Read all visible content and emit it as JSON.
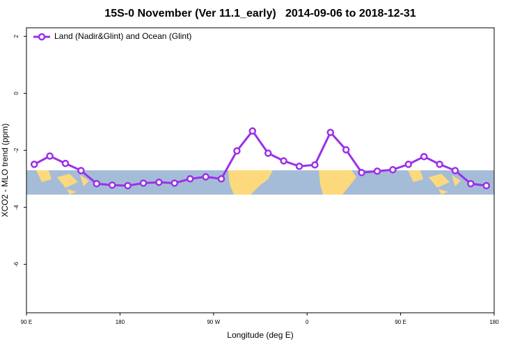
{
  "chart_data": {
    "type": "line",
    "title": "15S-0 November (Ver 11.1_early)   2014-09-06 to 2018-12-31",
    "xlabel": "Longitude (deg E)",
    "ylabel": "XCO2 - MLO trend (ppm)",
    "x": [
      97.5,
      112.5,
      127.5,
      142.5,
      157.5,
      172.5,
      187.5,
      202.5,
      217.5,
      232.5,
      247.5,
      262.5,
      277.5,
      292.5,
      307.5,
      322.5,
      337.5,
      352.5,
      367.5,
      382.5,
      397.5,
      412.5,
      427.5,
      442.5,
      457.5,
      472.5,
      487.5,
      502.5,
      517.5,
      532.5
    ],
    "series": [
      {
        "name": "Land (Nadir&Glint) and Ocean (Glint)",
        "color": "#9b30e8",
        "values": [
          -2.49,
          -2.2,
          -2.46,
          -2.71,
          -3.17,
          -3.22,
          -3.24,
          -3.15,
          -3.12,
          -3.15,
          -3.0,
          -2.93,
          -3.0,
          -2.02,
          -1.32,
          -2.1,
          -2.37,
          -2.56,
          -2.51,
          -1.37,
          -1.98,
          -2.78,
          -2.73,
          -2.68,
          -2.49,
          -2.22,
          -2.49,
          -2.71,
          -3.17,
          -3.24
        ]
      }
    ],
    "xlim": [
      90,
      540
    ],
    "xticks": [
      {
        "value": 90,
        "label": "90 E"
      },
      {
        "value": 180,
        "label": "180"
      },
      {
        "value": 270,
        "label": "90 W"
      },
      {
        "value": 360,
        "label": "0"
      },
      {
        "value": 450,
        "label": "90 E"
      },
      {
        "value": 540,
        "label": "180"
      }
    ],
    "ylim": [
      -7.7,
      2.3
    ],
    "yticks": [
      2,
      0,
      -2,
      -4,
      -6
    ],
    "legend": "top-left"
  }
}
